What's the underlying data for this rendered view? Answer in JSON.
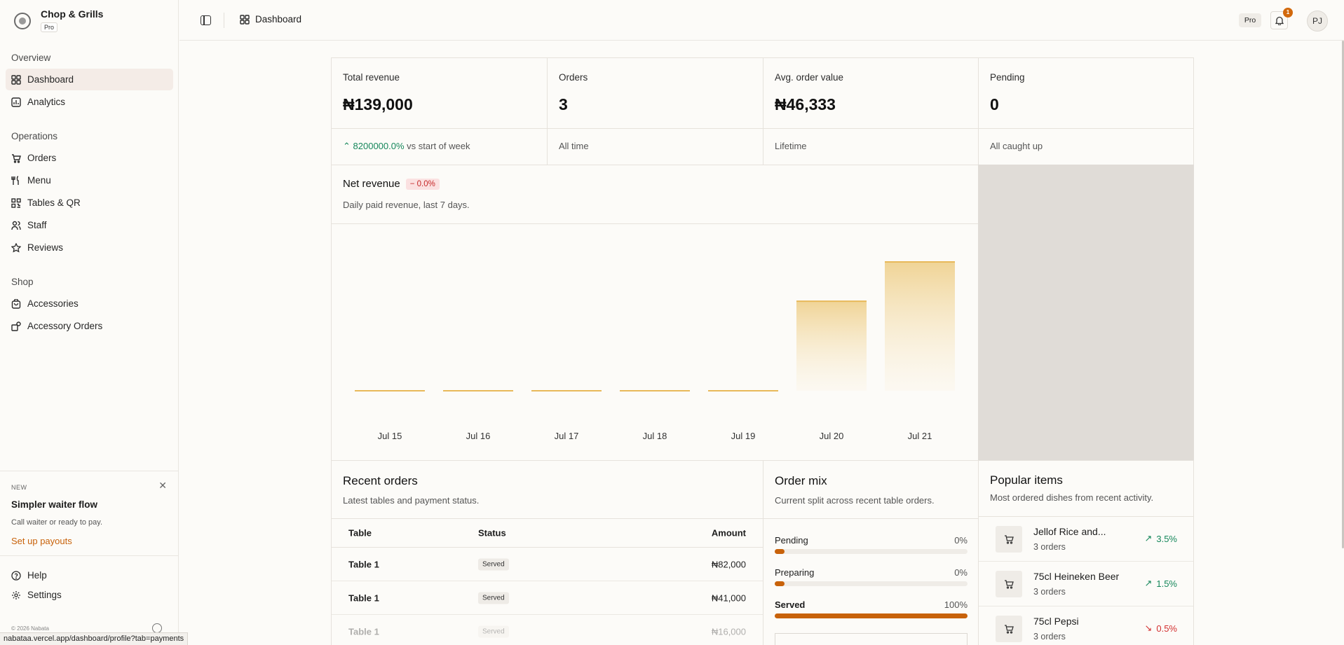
{
  "brand": {
    "name": "Chop & Grills",
    "badge": "Pro"
  },
  "nav": {
    "overview_label": "Overview",
    "operations_label": "Operations",
    "shop_label": "Shop",
    "items": [
      {
        "label": "Dashboard",
        "icon": "grid-icon"
      },
      {
        "label": "Analytics",
        "icon": "analytics-icon"
      },
      {
        "label": "Orders",
        "icon": "cart-icon"
      },
      {
        "label": "Menu",
        "icon": "utensils-icon"
      },
      {
        "label": "Tables & QR",
        "icon": "qr-icon"
      },
      {
        "label": "Staff",
        "icon": "users-icon"
      },
      {
        "label": "Reviews",
        "icon": "star-icon"
      },
      {
        "label": "Accessories",
        "icon": "bag-icon"
      },
      {
        "label": "Accessory Orders",
        "icon": "package-icon"
      }
    ]
  },
  "promo": {
    "tag": "NEW",
    "title": "Simpler waiter flow",
    "text": "Call waiter or ready to pay.",
    "link": "Set up payouts"
  },
  "footer": {
    "help": "Help",
    "settings": "Settings",
    "copyright": "© 2026 Nabata"
  },
  "status_url": "nabataa.vercel.app/dashboard/profile?tab=payments",
  "topbar": {
    "breadcrumb": "Dashboard",
    "plan": "Pro",
    "notifications": "1",
    "avatar": "PJ"
  },
  "kpis": [
    {
      "label": "Total revenue",
      "value": "₦139,000",
      "sub_trend": "8200000.0%",
      "sub": "vs start of week"
    },
    {
      "label": "Orders",
      "value": "3",
      "sub": "All time"
    },
    {
      "label": "Avg. order value",
      "value": "₦46,333",
      "sub": "Lifetime"
    },
    {
      "label": "Pending",
      "value": "0",
      "sub": "All caught up"
    }
  ],
  "net_revenue": {
    "title": "Net revenue",
    "delta": "0.0%",
    "subtitle": "Daily paid revenue, last 7 days."
  },
  "chart_data": {
    "type": "bar",
    "categories": [
      "Jul 15",
      "Jul 16",
      "Jul 17",
      "Jul 18",
      "Jul 19",
      "Jul 20",
      "Jul 21"
    ],
    "values": [
      0,
      0,
      0,
      0,
      0,
      57000,
      82000
    ],
    "title": "Net revenue",
    "ylim": [
      0,
      82000
    ],
    "colors": {
      "bar_top": "#e8b95a",
      "bar_fill": "#f1d79e"
    }
  },
  "recent_orders": {
    "title": "Recent orders",
    "subtitle": "Latest tables and payment status.",
    "columns": [
      "Table",
      "Status",
      "Amount"
    ],
    "rows": [
      {
        "table": "Table 1",
        "status": "Served",
        "amount": "₦82,000"
      },
      {
        "table": "Table 1",
        "status": "Served",
        "amount": "₦41,000"
      },
      {
        "table": "Table 1",
        "status": "Served",
        "amount": "₦16,000"
      }
    ]
  },
  "order_mix": {
    "title": "Order mix",
    "subtitle": "Current split across recent table orders.",
    "rows": [
      {
        "label": "Pending",
        "pct": "0%",
        "fill": 0.05
      },
      {
        "label": "Preparing",
        "pct": "0%",
        "fill": 0.05
      },
      {
        "label": "Served",
        "pct": "100%",
        "fill": 1.0
      }
    ]
  },
  "popular": {
    "title": "Popular items",
    "subtitle": "Most ordered dishes from recent activity.",
    "items": [
      {
        "name": "Jellof Rice and...",
        "count": "3 orders",
        "trend": "3.5%",
        "dir": "up"
      },
      {
        "name": "75cl Heineken Beer",
        "count": "3 orders",
        "trend": "1.5%",
        "dir": "up"
      },
      {
        "name": "75cl Pepsi",
        "count": "3 orders",
        "trend": "0.5%",
        "dir": "down"
      }
    ]
  },
  "colors": {
    "accent": "#c8620a",
    "positive": "#16875b",
    "negative": "#d32f2f"
  }
}
